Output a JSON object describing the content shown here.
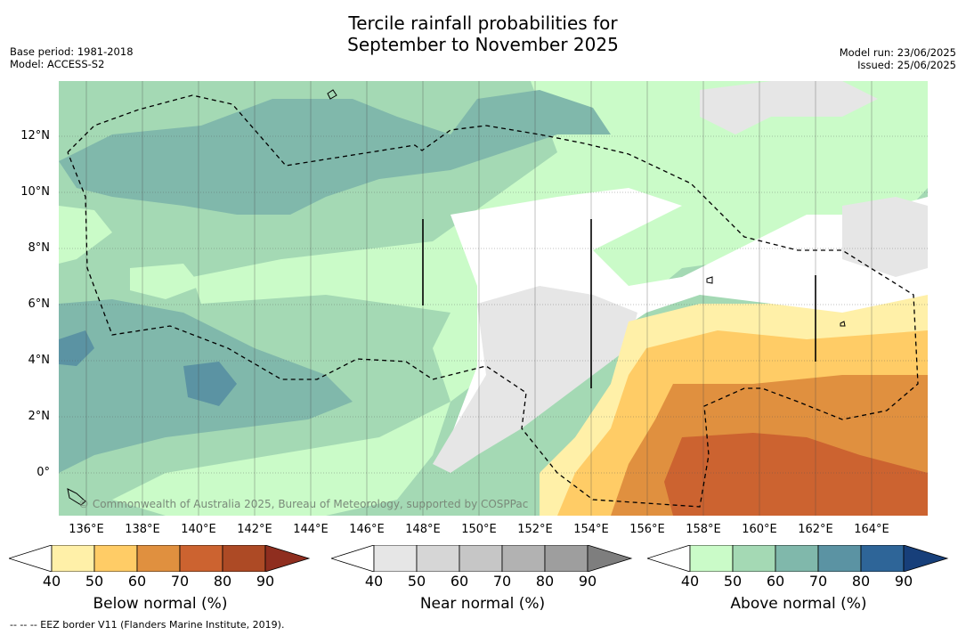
{
  "title": {
    "line1": "Tercile rainfall probabilities for",
    "line2": "September to November 2025"
  },
  "meta": {
    "base_period": "Base period: 1981-2018",
    "model": "Model: ACCESS-S2",
    "model_run": "Model run: 23/06/2025",
    "issued": "Issued: 25/06/2025"
  },
  "map": {
    "copyright": "© Commonwealth of Australia 2025, Bureau of Meteorology, supported by COSPPac",
    "lon_labels": [
      "136°E",
      "138°E",
      "140°E",
      "142°E",
      "144°E",
      "146°E",
      "148°E",
      "150°E",
      "152°E",
      "154°E",
      "156°E",
      "158°E",
      "160°E",
      "162°E",
      "164°E"
    ],
    "lat_labels": [
      "12°N",
      "10°N",
      "8°N",
      "6°N",
      "4°N",
      "2°N",
      "0°"
    ],
    "colors": {
      "below": [
        "#fff0a8",
        "#ffcc66",
        "#e0903f",
        "#cc6330",
        "#ad4a25",
        "#8f2e1f"
      ],
      "near": [
        "#e6e6e6",
        "#d6d6d6",
        "#c6c6c6",
        "#b2b2b2",
        "#9e9e9e",
        "#7e7e7e"
      ],
      "above": [
        "#cafbc8",
        "#a4d9b4",
        "#80b8ab",
        "#5b93a3",
        "#2e6598",
        "#173f7a"
      ]
    }
  },
  "colorbars": [
    {
      "title": "Below normal (%)",
      "ticks": [
        "40",
        "50",
        "60",
        "70",
        "80",
        "90"
      ]
    },
    {
      "title": "Near normal (%)",
      "ticks": [
        "40",
        "50",
        "60",
        "70",
        "80",
        "90"
      ]
    },
    {
      "title": "Above normal (%)",
      "ticks": [
        "40",
        "50",
        "60",
        "70",
        "80",
        "90"
      ]
    }
  ],
  "footnote": "-- -- -- EEZ border V11 (Flanders Marine Institute, 2019)."
}
